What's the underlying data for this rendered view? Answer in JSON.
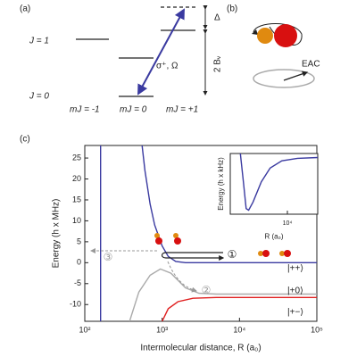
{
  "diagram": {
    "panel_a": {
      "label": "(a)",
      "j1": "J = 1",
      "j0": "J = 0",
      "m_minus": "mJ = -1",
      "m_zero": "mJ = 0",
      "m_plus": "mJ = +1",
      "transition": "σ⁺, Ω",
      "detuning": "Δ",
      "splitting": "2 Bᵥ"
    },
    "panel_b": {
      "label": "(b)",
      "field": "EAC"
    },
    "panel_c": {
      "label": "(c)",
      "annotations": [
        "③",
        "②",
        "①"
      ],
      "states": [
        "|++⟩",
        "|+0⟩",
        "|+−⟩"
      ]
    }
  },
  "chart_data": [
    {
      "type": "line",
      "x_label": "Intermolecular distance, R (a₀)",
      "y_label": "Energy (h x MHz)",
      "log_x": true,
      "xlim": [
        100,
        100000
      ],
      "ylim": [
        -14,
        28
      ],
      "xticks": [
        {
          "value": 100,
          "label": "10²"
        },
        {
          "value": 1000,
          "label": "10³"
        },
        {
          "value": 10000,
          "label": "10⁴"
        },
        {
          "value": 100000,
          "label": "10⁵"
        }
      ],
      "yticks": [
        -10,
        -5,
        0,
        5,
        10,
        15,
        20,
        25
      ],
      "series": [
        {
          "color": "#3a3aa0",
          "x": [
            160,
            160,
            300,
            550,
            600,
            700,
            800,
            1000,
            1200,
            1500,
            2000,
            100000
          ],
          "values": [
            -14,
            28,
            null,
            28,
            22,
            14,
            9,
            4,
            1.5,
            0.3,
            0,
            0
          ]
        },
        {
          "color": "#aaaaaa",
          "x": [
            380,
            500,
            700,
            950,
            1300,
            2000,
            3000,
            5000,
            100000
          ],
          "values": [
            -14,
            -7,
            -3,
            -1.5,
            -2.5,
            -6,
            -7.3,
            -7.5,
            -7.5
          ]
        },
        {
          "color": "#e02020",
          "x": [
            1000,
            1200,
            1600,
            2500,
            5000,
            100000
          ],
          "values": [
            -14,
            -11,
            -9.3,
            -8.5,
            -8.3,
            -8.3
          ]
        }
      ]
    },
    {
      "type": "line",
      "x_label": "R (a₀)",
      "y_label": "Energy (h x kHz)",
      "log_x": true,
      "xlim": [
        1000,
        34000
      ],
      "ylim": [
        -7,
        0.5
      ],
      "xticks": [
        {
          "value": 10000,
          "label": "10⁴"
        }
      ],
      "series": [
        {
          "color": "#3a3aa0",
          "x": [
            1500,
            1700,
            1900,
            2100,
            2500,
            3500,
            5000,
            8000,
            15000,
            34000
          ],
          "values": [
            0.5,
            -3,
            -6.3,
            -6.5,
            -5.5,
            -3,
            -1.3,
            -0.4,
            -0.1,
            0
          ]
        }
      ]
    }
  ]
}
